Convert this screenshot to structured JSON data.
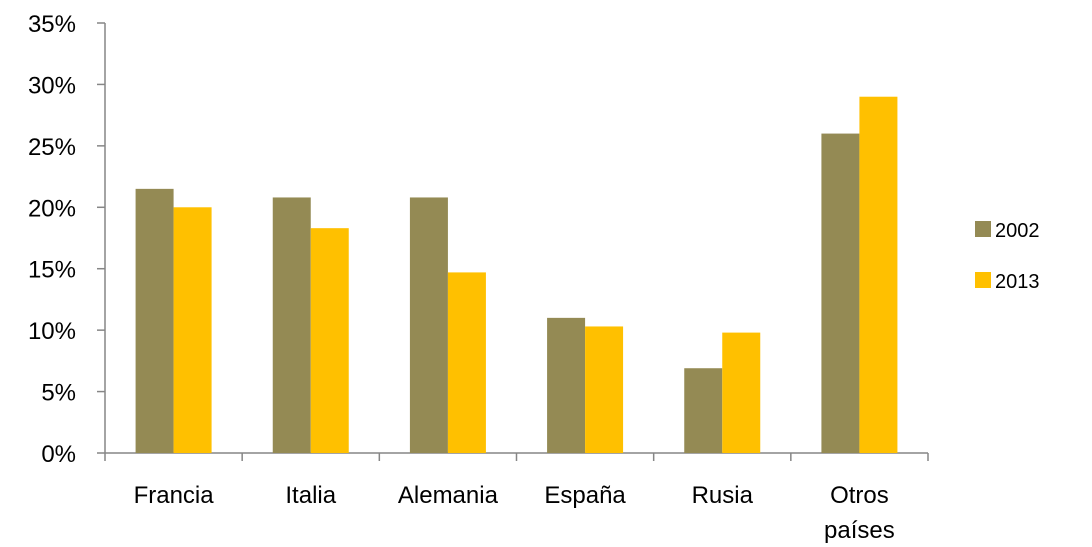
{
  "chart_data": {
    "type": "bar",
    "categories": [
      "Francia",
      "Italia",
      "Alemania",
      "España",
      "Rusia",
      "Otros países"
    ],
    "series": [
      {
        "name": "2002",
        "color": "#948A54",
        "values": [
          21.5,
          20.8,
          20.8,
          11.0,
          6.9,
          26.0
        ]
      },
      {
        "name": "2013",
        "color": "#FFC000",
        "values": [
          20.0,
          18.3,
          14.7,
          10.3,
          9.8,
          29.0
        ]
      }
    ],
    "ylim": [
      0,
      35
    ],
    "yticks": [
      0,
      5,
      10,
      15,
      20,
      25,
      30,
      35
    ],
    "ytick_labels": [
      "0%",
      "5%",
      "10%",
      "15%",
      "20%",
      "25%",
      "30%",
      "35%"
    ],
    "y_unit": "%",
    "title": "",
    "xlabel": "",
    "ylabel": "",
    "grid": false,
    "legend_position": "right"
  }
}
